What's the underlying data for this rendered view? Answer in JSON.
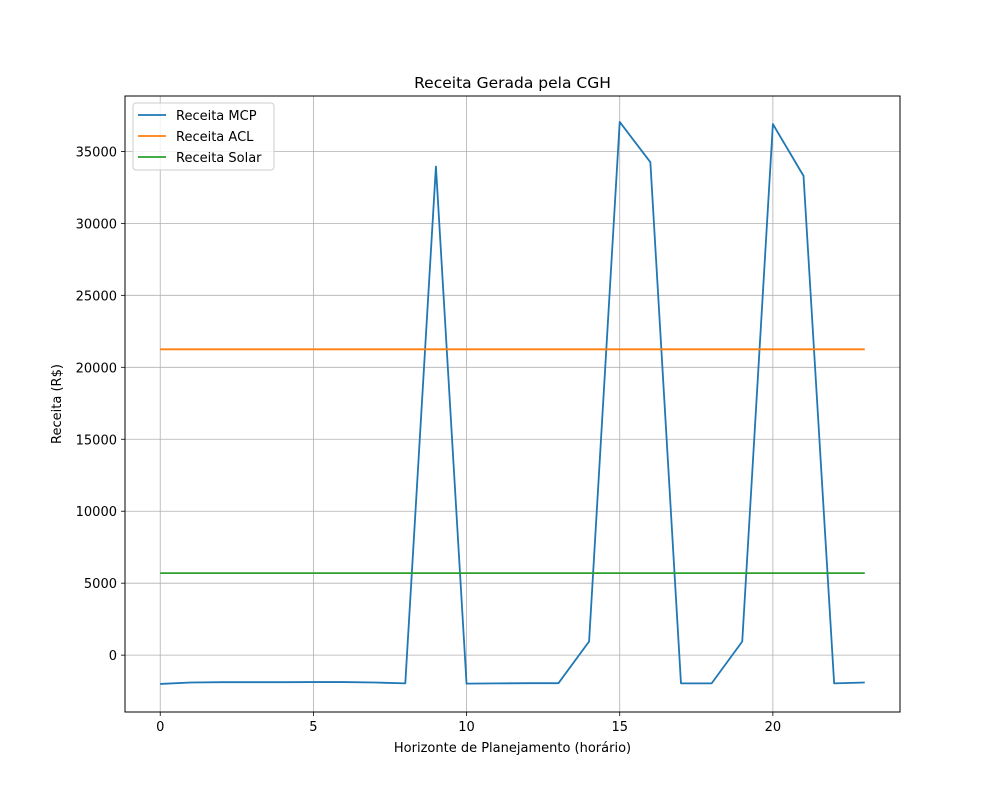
{
  "chart_data": {
    "type": "line",
    "title": "Receita Gerada pela CGH",
    "xlabel": "Horizonte de Planejamento (horário)",
    "ylabel": "Receita (R$)",
    "xlim": [
      -1.15,
      24.15
    ],
    "ylim": [
      -3950,
      38850
    ],
    "x_ticks": [
      0,
      5,
      10,
      15,
      20
    ],
    "y_ticks": [
      0,
      5000,
      10000,
      15000,
      20000,
      25000,
      30000,
      35000
    ],
    "grid": true,
    "legend_position": "top-left",
    "x": [
      0,
      1,
      2,
      3,
      4,
      5,
      6,
      7,
      8,
      9,
      10,
      11,
      12,
      13,
      14,
      15,
      16,
      17,
      18,
      19,
      20,
      21,
      22,
      23
    ],
    "series": [
      {
        "name": "Receita MCP",
        "color": "#1f77b4",
        "values": [
          -2000,
          -1900,
          -1880,
          -1880,
          -1880,
          -1870,
          -1870,
          -1900,
          -1960,
          33950,
          -1980,
          -1960,
          -1950,
          -1950,
          950,
          37050,
          34250,
          -1960,
          -1960,
          950,
          36900,
          33300,
          -1960,
          -1900
        ]
      },
      {
        "name": "Receita ACL",
        "color": "#ff7f0e",
        "values": [
          21250,
          21250,
          21250,
          21250,
          21250,
          21250,
          21250,
          21250,
          21250,
          21250,
          21250,
          21250,
          21250,
          21250,
          21250,
          21250,
          21250,
          21250,
          21250,
          21250,
          21250,
          21250,
          21250,
          21250
        ]
      },
      {
        "name": "Receita Solar",
        "color": "#2ca02c",
        "values": [
          5700,
          5700,
          5700,
          5700,
          5700,
          5700,
          5700,
          5700,
          5700,
          5700,
          5700,
          5700,
          5700,
          5700,
          5700,
          5700,
          5700,
          5700,
          5700,
          5700,
          5700,
          5700,
          5700,
          5700
        ]
      }
    ]
  }
}
